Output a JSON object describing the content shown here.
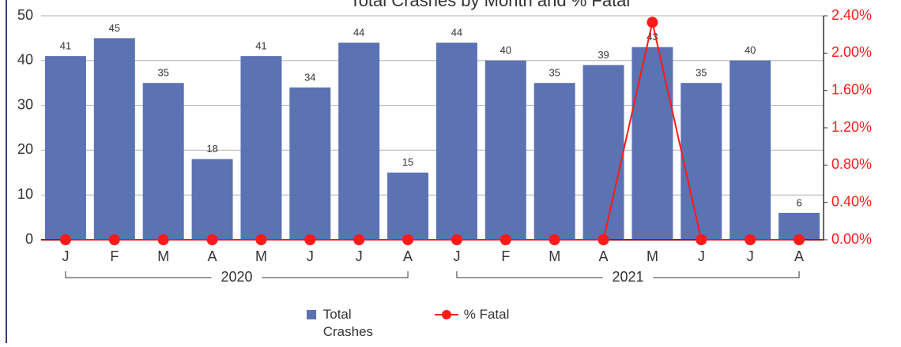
{
  "chart_data": {
    "type": "bar",
    "title": "Total Crashes by Month and % Fatal",
    "categories": [
      "J",
      "F",
      "M",
      "A",
      "M",
      "J",
      "J",
      "A",
      "J",
      "F",
      "M",
      "A",
      "M",
      "J",
      "J",
      "A"
    ],
    "groups": [
      "2020",
      "2021"
    ],
    "series": [
      {
        "name": "Total Crashes",
        "color": "#5b72b3",
        "values": [
          41,
          45,
          35,
          18,
          41,
          34,
          44,
          15,
          44,
          40,
          35,
          39,
          43,
          35,
          40,
          6
        ]
      },
      {
        "name": "% Fatal",
        "color": "#ff1a1a",
        "axis": "y2",
        "type": "line",
        "values": [
          0,
          0,
          0,
          0,
          0,
          0,
          0,
          0,
          0,
          0,
          0,
          0,
          2.33,
          0,
          0,
          0
        ]
      }
    ],
    "ylim": [
      0,
      50
    ],
    "yticks": [
      0,
      10,
      20,
      30,
      40,
      50
    ],
    "y2lim": [
      0,
      2.4
    ],
    "y2ticks": [
      {
        "value": 0,
        "label": "0.00%"
      },
      {
        "value": 0.4,
        "label": "0.40%"
      },
      {
        "value": 0.8,
        "label": "0.80%"
      },
      {
        "value": 1.2,
        "label": "1.20%"
      },
      {
        "value": 1.6,
        "label": "1.60%"
      },
      {
        "value": 2.0,
        "label": "2.00%"
      },
      {
        "value": 2.4,
        "label": "2.40%"
      }
    ],
    "grid": true
  }
}
